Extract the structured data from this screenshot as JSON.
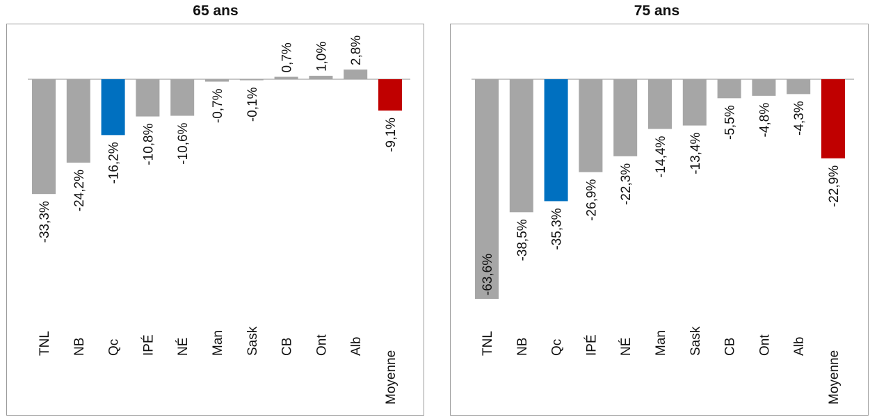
{
  "colors": {
    "default": "#a6a6a6",
    "highlight": "#0070c0",
    "average": "#c00000"
  },
  "chart_data": [
    {
      "type": "bar",
      "title": "65 ans",
      "categories": [
        "TNL",
        "NB",
        "Qc",
        "IPÉ",
        "NÉ",
        "Man",
        "Sask",
        "CB",
        "Ont",
        "Alb",
        "Moyenne"
      ],
      "values": [
        -33.3,
        -24.2,
        -16.2,
        -10.8,
        -10.6,
        -0.7,
        -0.1,
        0.7,
        1.0,
        2.8,
        -9.1
      ],
      "data_labels": [
        "-33,3%",
        "-24,2%",
        "-16,2%",
        "-10,8%",
        "-10,6%",
        "-0,7%",
        "-0,1%",
        "0,7%",
        "1,0%",
        "2,8%",
        "-9,1%"
      ],
      "highlight": [
        "Qc"
      ],
      "average_category": "Moyenne",
      "grid": false
    },
    {
      "type": "bar",
      "title": "75 ans",
      "categories": [
        "TNL",
        "NB",
        "Qc",
        "IPÉ",
        "NÉ",
        "Man",
        "Sask",
        "CB",
        "Ont",
        "Alb",
        "Moyenne"
      ],
      "values": [
        -63.6,
        -38.5,
        -35.3,
        -26.9,
        -22.3,
        -14.4,
        -13.4,
        -5.5,
        -4.8,
        -4.3,
        -22.9
      ],
      "data_labels": [
        "-63,6%",
        "-38,5%",
        "-35,3%",
        "-26,9%",
        "-22,3%",
        "-14,4%",
        "-13,4%",
        "-5,5%",
        "-4,8%",
        "-4,3%",
        "-22,9%"
      ],
      "highlight": [
        "Qc"
      ],
      "average_category": "Moyenne",
      "grid": false
    }
  ]
}
